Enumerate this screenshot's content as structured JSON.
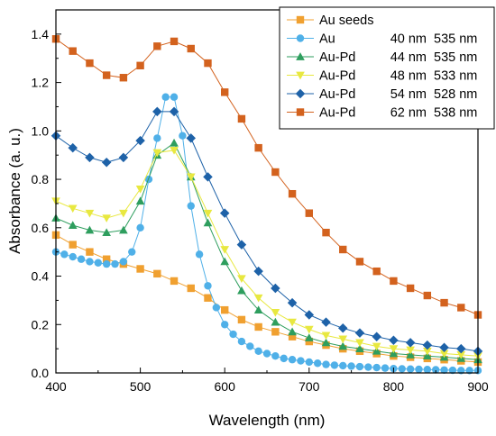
{
  "chart_data": {
    "type": "line",
    "xlabel": "Wavelength (nm)",
    "ylabel": "Absorbance (a. u.)",
    "xlim": [
      400,
      900
    ],
    "ylim": [
      0,
      1.5
    ],
    "x_ticks": [
      "400",
      "500",
      "600",
      "700",
      "800",
      "900"
    ],
    "y_ticks": [
      "0.0",
      "0.2",
      "0.4",
      "0.6",
      "0.8",
      "1.0",
      "1.2",
      "1.4"
    ],
    "legend_position": "top-right",
    "series": [
      {
        "name": "Au seeds",
        "size_label": "",
        "peak_label": "",
        "color": "#F0A030",
        "marker": "square",
        "x": [
          400,
          420,
          440,
          460,
          480,
          500,
          520,
          540,
          560,
          580,
          600,
          620,
          640,
          660,
          680,
          700,
          720,
          740,
          760,
          780,
          800,
          820,
          840,
          860,
          880,
          900
        ],
        "y": [
          0.57,
          0.53,
          0.5,
          0.47,
          0.45,
          0.43,
          0.41,
          0.38,
          0.35,
          0.31,
          0.26,
          0.22,
          0.19,
          0.17,
          0.15,
          0.13,
          0.115,
          0.1,
          0.09,
          0.08,
          0.07,
          0.065,
          0.06,
          0.055,
          0.05,
          0.045
        ]
      },
      {
        "name": "Au",
        "size_label": "40 nm",
        "peak_label": "535 nm",
        "color": "#4FB0E8",
        "marker": "circle",
        "x": [
          400,
          410,
          420,
          430,
          440,
          450,
          460,
          470,
          480,
          490,
          500,
          510,
          520,
          530,
          540,
          550,
          560,
          570,
          580,
          590,
          600,
          610,
          620,
          630,
          640,
          650,
          660,
          670,
          680,
          690,
          700,
          710,
          720,
          730,
          740,
          750,
          760,
          770,
          780,
          790,
          800,
          810,
          820,
          830,
          840,
          850,
          860,
          870,
          880,
          890,
          900
        ],
        "y": [
          0.5,
          0.49,
          0.48,
          0.47,
          0.46,
          0.455,
          0.45,
          0.45,
          0.46,
          0.5,
          0.6,
          0.8,
          0.97,
          1.14,
          1.14,
          0.98,
          0.69,
          0.49,
          0.36,
          0.27,
          0.2,
          0.16,
          0.13,
          0.11,
          0.09,
          0.08,
          0.07,
          0.06,
          0.055,
          0.05,
          0.045,
          0.04,
          0.035,
          0.032,
          0.03,
          0.028,
          0.026,
          0.024,
          0.022,
          0.02,
          0.018,
          0.017,
          0.016,
          0.015,
          0.014,
          0.013,
          0.012,
          0.011,
          0.01,
          0.01,
          0.01
        ]
      },
      {
        "name": "Au-Pd",
        "size_label": "44 nm",
        "peak_label": "535 nm",
        "color": "#2E9E5E",
        "marker": "triangle-up",
        "x": [
          400,
          420,
          440,
          460,
          480,
          500,
          520,
          540,
          560,
          580,
          600,
          620,
          640,
          660,
          680,
          700,
          720,
          740,
          760,
          780,
          800,
          820,
          840,
          860,
          880,
          900
        ],
        "y": [
          0.64,
          0.61,
          0.59,
          0.58,
          0.59,
          0.71,
          0.9,
          0.95,
          0.81,
          0.62,
          0.46,
          0.34,
          0.26,
          0.21,
          0.17,
          0.145,
          0.125,
          0.11,
          0.1,
          0.09,
          0.08,
          0.075,
          0.07,
          0.065,
          0.06,
          0.055
        ]
      },
      {
        "name": "Au-Pd",
        "size_label": "48 nm",
        "peak_label": "533 nm",
        "color": "#E8E840",
        "marker": "triangle-down",
        "x": [
          400,
          420,
          440,
          460,
          480,
          500,
          520,
          540,
          560,
          580,
          600,
          620,
          640,
          660,
          680,
          700,
          720,
          740,
          760,
          780,
          800,
          820,
          840,
          860,
          880,
          900
        ],
        "y": [
          0.71,
          0.68,
          0.66,
          0.64,
          0.66,
          0.76,
          0.91,
          0.92,
          0.81,
          0.66,
          0.51,
          0.39,
          0.31,
          0.25,
          0.21,
          0.18,
          0.155,
          0.14,
          0.125,
          0.11,
          0.1,
          0.095,
          0.09,
          0.08,
          0.075,
          0.07
        ]
      },
      {
        "name": "Au-Pd",
        "size_label": "54 nm",
        "peak_label": "528 nm",
        "color": "#1E62A8",
        "marker": "diamond",
        "x": [
          400,
          420,
          440,
          460,
          480,
          500,
          520,
          540,
          560,
          580,
          600,
          620,
          640,
          660,
          680,
          700,
          720,
          740,
          760,
          780,
          800,
          820,
          840,
          860,
          880,
          900
        ],
        "y": [
          0.98,
          0.93,
          0.89,
          0.87,
          0.89,
          0.96,
          1.08,
          1.08,
          0.97,
          0.81,
          0.66,
          0.53,
          0.42,
          0.35,
          0.29,
          0.24,
          0.21,
          0.185,
          0.165,
          0.15,
          0.135,
          0.125,
          0.115,
          0.105,
          0.1,
          0.09
        ]
      },
      {
        "name": "Au-Pd",
        "size_label": "62 nm",
        "peak_label": "538 nm",
        "color": "#D3621E",
        "marker": "square",
        "x": [
          400,
          420,
          440,
          460,
          480,
          500,
          520,
          540,
          560,
          580,
          600,
          620,
          640,
          660,
          680,
          700,
          720,
          740,
          760,
          780,
          800,
          820,
          840,
          860,
          880,
          900
        ],
        "y": [
          1.38,
          1.33,
          1.28,
          1.23,
          1.22,
          1.27,
          1.35,
          1.37,
          1.34,
          1.28,
          1.16,
          1.05,
          0.93,
          0.83,
          0.74,
          0.66,
          0.58,
          0.51,
          0.46,
          0.42,
          0.38,
          0.35,
          0.32,
          0.29,
          0.27,
          0.24
        ]
      }
    ]
  }
}
